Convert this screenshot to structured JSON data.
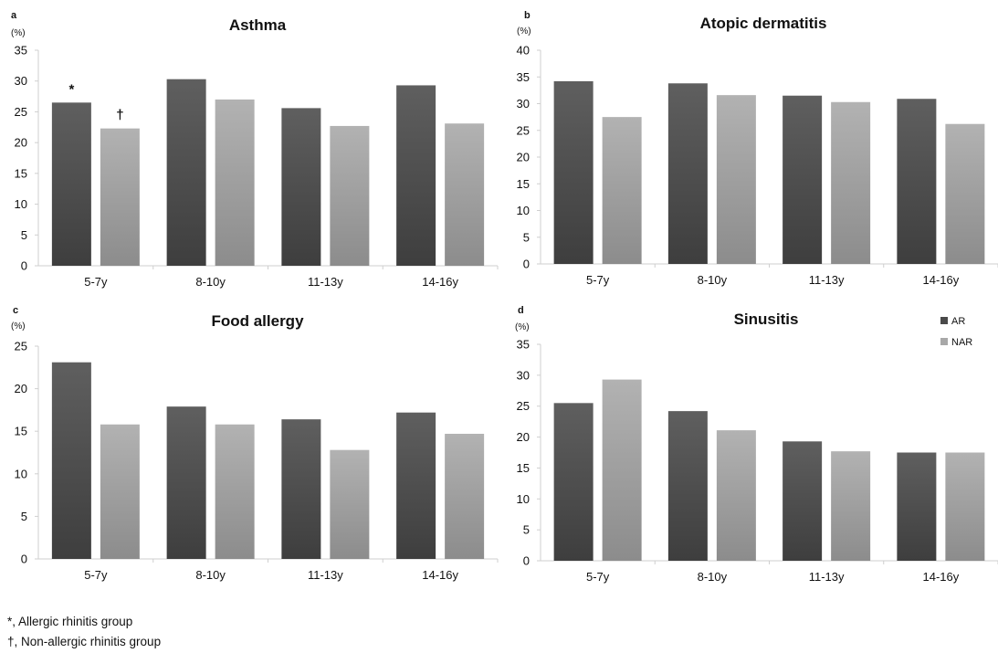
{
  "chart_data": [
    {
      "panel_label": "a",
      "type": "bar",
      "title": "Asthma",
      "ylabel": "(%)",
      "categories": [
        "5-7y",
        "8-10y",
        "11-13y",
        "14-16y"
      ],
      "ylim": [
        0,
        35
      ],
      "yticks": [
        0,
        5,
        10,
        15,
        20,
        25,
        30,
        35
      ],
      "series": [
        {
          "name": "AR",
          "values": [
            26.5,
            30.3,
            25.6,
            29.3
          ]
        },
        {
          "name": "NAR",
          "values": [
            22.3,
            27.0,
            22.7,
            23.1
          ]
        }
      ],
      "annotations": [
        {
          "text": "*",
          "series": 0,
          "category": 0
        },
        {
          "text": "†",
          "series": 1,
          "category": 0
        }
      ],
      "grid": false
    },
    {
      "panel_label": "b",
      "type": "bar",
      "title": "Atopic dermatitis",
      "ylabel": "(%)",
      "categories": [
        "5-7y",
        "8-10y",
        "11-13y",
        "14-16y"
      ],
      "ylim": [
        0,
        40
      ],
      "yticks": [
        0,
        5,
        10,
        15,
        20,
        25,
        30,
        35,
        40
      ],
      "series": [
        {
          "name": "AR",
          "values": [
            34.2,
            33.8,
            31.5,
            30.9
          ]
        },
        {
          "name": "NAR",
          "values": [
            27.5,
            31.6,
            30.3,
            26.2
          ]
        }
      ],
      "grid": false
    },
    {
      "panel_label": "c",
      "type": "bar",
      "title": "Food allergy",
      "ylabel": "(%)",
      "categories": [
        "5-7y",
        "8-10y",
        "11-13y",
        "14-16y"
      ],
      "ylim": [
        0,
        25
      ],
      "yticks": [
        0,
        5,
        10,
        15,
        20,
        25
      ],
      "series": [
        {
          "name": "AR",
          "values": [
            23.1,
            17.9,
            16.4,
            17.2
          ]
        },
        {
          "name": "NAR",
          "values": [
            15.8,
            15.8,
            12.8,
            14.7
          ]
        }
      ],
      "grid": false
    },
    {
      "panel_label": "d",
      "type": "bar",
      "title": "Sinusitis",
      "ylabel": "(%)",
      "categories": [
        "5-7y",
        "8-10y",
        "11-13y",
        "14-16y"
      ],
      "ylim": [
        0,
        35
      ],
      "yticks": [
        0,
        5,
        10,
        15,
        20,
        25,
        30,
        35
      ],
      "series": [
        {
          "name": "AR",
          "values": [
            25.5,
            24.2,
            19.3,
            17.5
          ]
        },
        {
          "name": "NAR",
          "values": [
            29.3,
            21.1,
            17.7,
            17.5
          ]
        }
      ],
      "legend": {
        "placement": "top-right",
        "entries": [
          "AR",
          "NAR"
        ]
      },
      "grid": false
    }
  ],
  "colors": {
    "AR_top": "#5f5f5f",
    "AR_bottom": "#3e3e3e",
    "NAR_top": "#b2b2b2",
    "NAR_bottom": "#8c8c8c",
    "axis": "#cfcfcf",
    "text": "#111111"
  },
  "footnotes": [
    "*, Allergic rhinitis group",
    "†, Non-allergic rhinitis group"
  ]
}
